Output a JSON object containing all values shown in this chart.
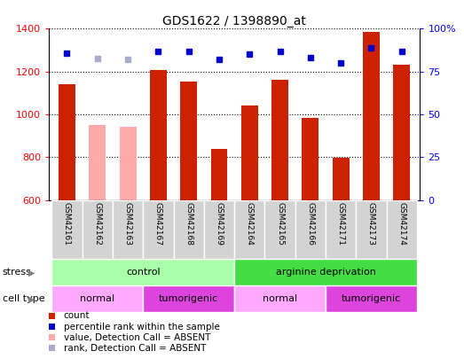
{
  "title": "GDS1622 / 1398890_at",
  "samples": [
    "GSM42161",
    "GSM42162",
    "GSM42163",
    "GSM42167",
    "GSM42168",
    "GSM42169",
    "GSM42164",
    "GSM42165",
    "GSM42166",
    "GSM42171",
    "GSM42173",
    "GSM42174"
  ],
  "count_values": [
    1140,
    950,
    940,
    1205,
    1155,
    840,
    1040,
    1160,
    985,
    795,
    1385,
    1230
  ],
  "count_absent": [
    false,
    true,
    true,
    false,
    false,
    false,
    false,
    false,
    false,
    false,
    false,
    false
  ],
  "rank_values": [
    1285,
    1260,
    1258,
    1295,
    1295,
    1255,
    1280,
    1295,
    1265,
    1242,
    1310,
    1295
  ],
  "rank_absent": [
    false,
    true,
    true,
    false,
    false,
    false,
    false,
    false,
    false,
    false,
    false,
    false
  ],
  "ylim_left": [
    600,
    1400
  ],
  "ylim_right": [
    0,
    100
  ],
  "yticks_left": [
    600,
    800,
    1000,
    1200,
    1400
  ],
  "yticks_right": [
    0,
    25,
    50,
    75,
    100
  ],
  "bar_color_present": "#cc2200",
  "bar_color_absent": "#ffaaaa",
  "dot_color_present": "#0000cc",
  "dot_color_absent": "#aaaacc",
  "stress_control_color": "#aaffaa",
  "stress_argininedepriv_color": "#44dd44",
  "cell_normal_color": "#ffaaff",
  "cell_tumorigenic_color": "#dd44dd",
  "stress_groups": [
    {
      "label": "control",
      "start": 0,
      "end": 5
    },
    {
      "label": "arginine deprivation",
      "start": 6,
      "end": 11
    }
  ],
  "cell_groups": [
    {
      "label": "normal",
      "start": 0,
      "end": 2,
      "color_light": true
    },
    {
      "label": "tumorigenic",
      "start": 3,
      "end": 5,
      "color_light": false
    },
    {
      "label": "normal",
      "start": 6,
      "end": 8,
      "color_light": true
    },
    {
      "label": "tumorigenic",
      "start": 9,
      "end": 11,
      "color_light": false
    }
  ],
  "legend_items": [
    {
      "label": "count",
      "color": "#cc2200"
    },
    {
      "label": "percentile rank within the sample",
      "color": "#0000cc"
    },
    {
      "label": "value, Detection Call = ABSENT",
      "color": "#ffaaaa"
    },
    {
      "label": "rank, Detection Call = ABSENT",
      "color": "#aaaacc"
    }
  ]
}
